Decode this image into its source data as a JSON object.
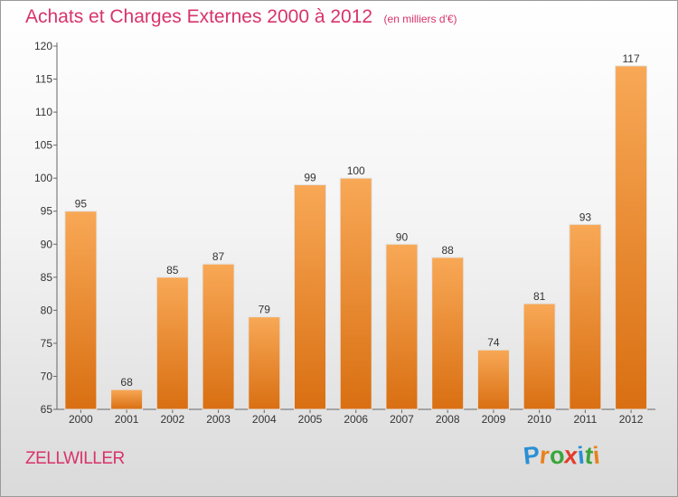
{
  "header": {
    "title": "Achats et Charges Externes 2000 à 2012",
    "unit": "(en milliers d'€)"
  },
  "footer": {
    "commune": "ZELLWILLER",
    "logo_letters": [
      "P",
      "r",
      "o",
      "x",
      "i",
      "t",
      "i"
    ],
    "logo_colors": [
      "#2a8fd4",
      "#e8821e",
      "#3aa53a",
      "#e23c2c",
      "#2a8fd4",
      "#3aa53a",
      "#e8821e"
    ]
  },
  "colors": {
    "bar_top": "#f8a856",
    "bar_bottom": "#d96f12",
    "title": "#d8336a"
  },
  "chart_data": {
    "type": "bar",
    "title": "Achats et Charges Externes 2000 à 2012",
    "subtitle": "(en milliers d'€)",
    "categories": [
      "2000",
      "2001",
      "2002",
      "2003",
      "2004",
      "2005",
      "2006",
      "2007",
      "2008",
      "2009",
      "2010",
      "2011",
      "2012"
    ],
    "values": [
      95,
      68,
      85,
      87,
      79,
      99,
      100,
      90,
      88,
      74,
      81,
      93,
      117
    ],
    "ylim": [
      65,
      120
    ],
    "yticks": [
      65,
      70,
      75,
      80,
      85,
      90,
      95,
      100,
      105,
      110,
      115,
      120
    ],
    "grid": false,
    "legend": "none"
  }
}
